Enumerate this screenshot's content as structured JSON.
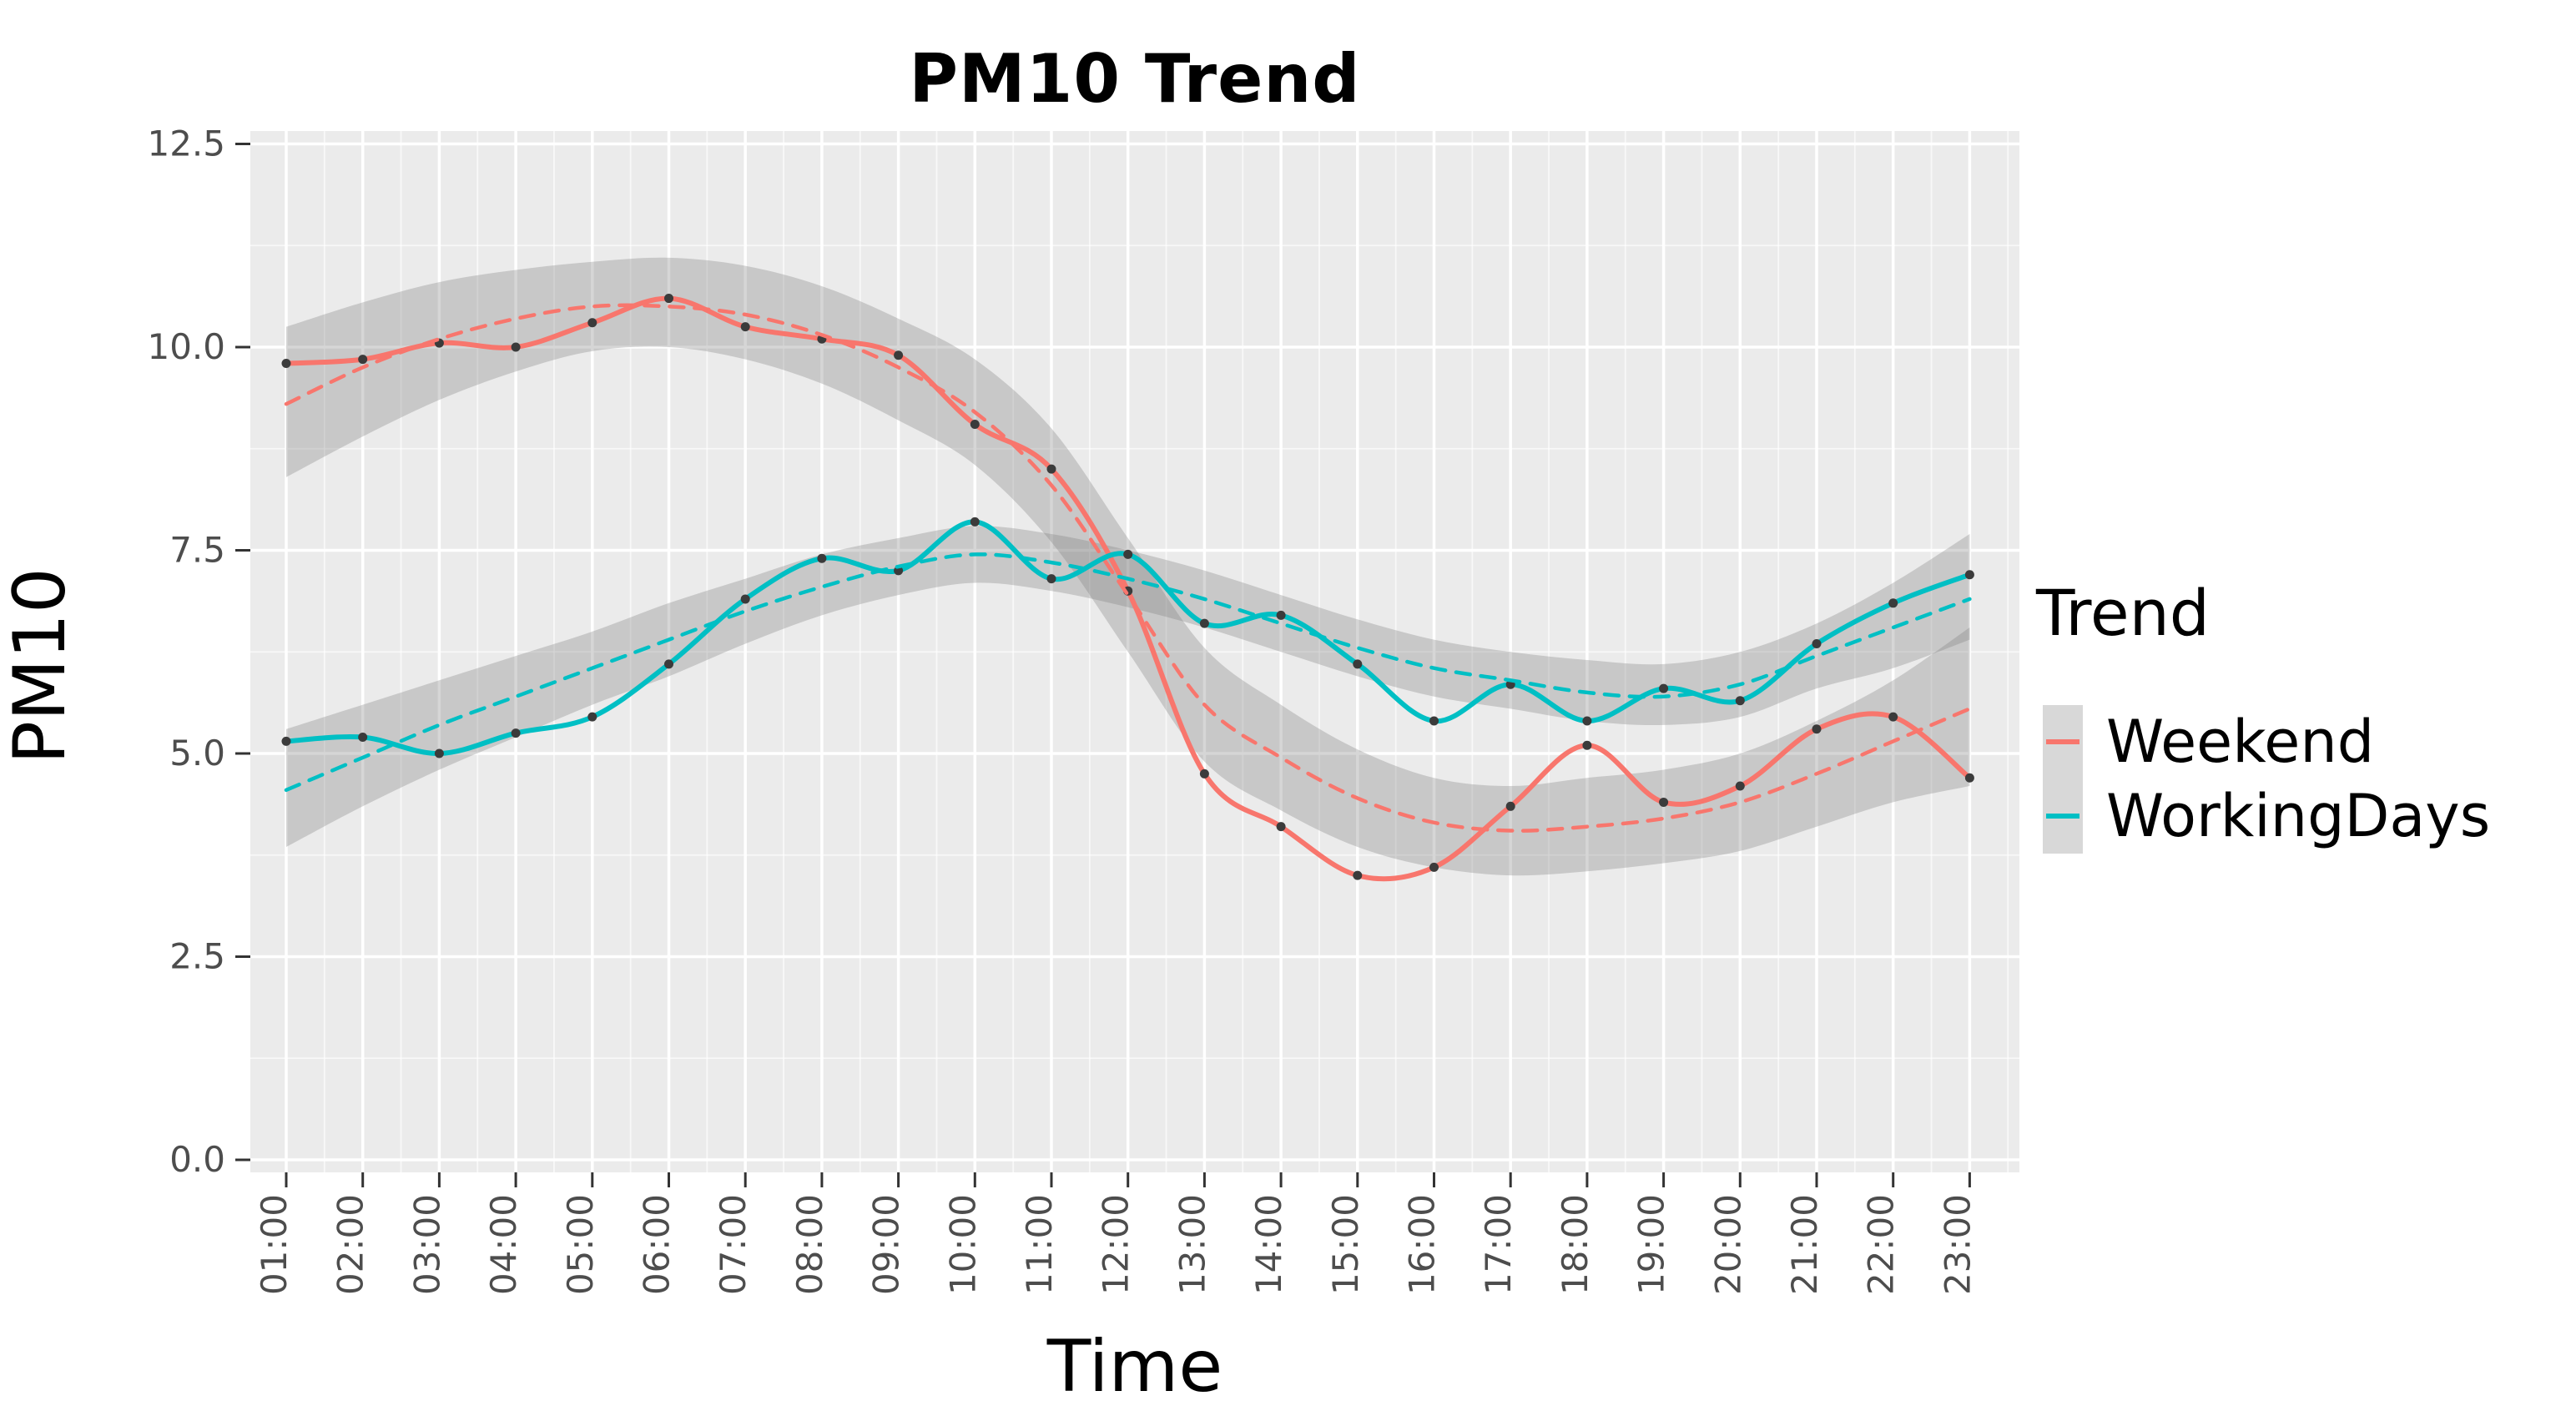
{
  "title": "PM10 Trend",
  "x_axis": {
    "label": "Time"
  },
  "y_axis": {
    "label": "PM10",
    "tick_labels": [
      "0.0",
      "2.5",
      "5.0",
      "7.5",
      "10.0",
      "12.5"
    ],
    "tick_values": [
      0,
      2.5,
      5,
      7.5,
      10,
      12.5
    ]
  },
  "legend": {
    "title": "Trend",
    "entries": [
      {
        "label": "Weekend",
        "color": "#F8766D"
      },
      {
        "label": "WorkingDays",
        "color": "#00BFC4"
      }
    ]
  },
  "colors": {
    "weekend": "#F8766D",
    "workingdays": "#00BFC4",
    "panel_background": "#EBEBEB",
    "grid_major": "#FFFFFF",
    "grid_minor": "rgba(255,255,255,0.65)",
    "ribbon": "rgba(127,127,127,0.32)",
    "point": "#3b3b3b",
    "axis_text": "#4D4D4D",
    "tick_mark": "#333333",
    "legend_key_bg": "#d8d8d8"
  },
  "chart_data": {
    "type": "line",
    "title": "PM10 Trend",
    "xlabel": "Time",
    "ylabel": "PM10",
    "ylim": [
      0,
      12.5
    ],
    "grid": true,
    "legend_position": "right",
    "legend_title": "Trend",
    "categories": [
      "01:00",
      "02:00",
      "03:00",
      "04:00",
      "05:00",
      "06:00",
      "07:00",
      "08:00",
      "09:00",
      "10:00",
      "11:00",
      "12:00",
      "13:00",
      "14:00",
      "15:00",
      "16:00",
      "17:00",
      "18:00",
      "19:00",
      "20:00",
      "21:00",
      "22:00",
      "23:00"
    ],
    "series": [
      {
        "name": "Weekend observed",
        "style": "solid",
        "points": true,
        "color": "#F8766D",
        "values": [
          9.8,
          9.85,
          10.05,
          10.0,
          10.3,
          10.6,
          10.25,
          10.1,
          9.9,
          9.05,
          8.5,
          7.0,
          4.75,
          4.1,
          3.5,
          3.6,
          4.35,
          5.1,
          4.4,
          4.6,
          5.3,
          5.45,
          4.7
        ]
      },
      {
        "name": "Weekend trend",
        "style": "dashed",
        "points": false,
        "color": "#F8766D",
        "values": [
          9.3,
          9.75,
          10.1,
          10.35,
          10.5,
          10.5,
          10.4,
          10.15,
          9.75,
          9.2,
          8.3,
          6.95,
          5.6,
          4.95,
          4.45,
          4.15,
          4.05,
          4.1,
          4.2,
          4.4,
          4.75,
          5.15,
          5.55
        ]
      },
      {
        "name": "WorkingDays observed",
        "style": "solid",
        "points": true,
        "color": "#00BFC4",
        "values": [
          5.15,
          5.2,
          5.0,
          5.25,
          5.45,
          6.1,
          6.9,
          7.4,
          7.25,
          7.85,
          7.15,
          7.45,
          6.6,
          6.7,
          6.1,
          5.4,
          5.85,
          5.4,
          5.8,
          5.65,
          6.35,
          6.85,
          7.2
        ]
      },
      {
        "name": "WorkingDays trend",
        "style": "dashed",
        "points": false,
        "color": "#00BFC4",
        "values": [
          4.55,
          4.95,
          5.35,
          5.7,
          6.05,
          6.4,
          6.75,
          7.05,
          7.3,
          7.45,
          7.35,
          7.15,
          6.9,
          6.6,
          6.3,
          6.05,
          5.9,
          5.75,
          5.7,
          5.85,
          6.2,
          6.55,
          6.9
        ]
      }
    ],
    "bands": [
      {
        "name": "Weekend confidence band",
        "upper": [
          10.25,
          10.55,
          10.8,
          10.95,
          11.05,
          11.1,
          11.0,
          10.75,
          10.35,
          9.85,
          9.0,
          7.65,
          6.3,
          5.6,
          5.05,
          4.7,
          4.6,
          4.7,
          4.8,
          5.0,
          5.4,
          5.9,
          6.55
        ],
        "lower": [
          8.4,
          8.9,
          9.35,
          9.7,
          9.95,
          10.0,
          9.85,
          9.55,
          9.1,
          8.55,
          7.6,
          6.25,
          4.9,
          4.3,
          3.85,
          3.6,
          3.5,
          3.55,
          3.65,
          3.8,
          4.1,
          4.4,
          4.6
        ]
      },
      {
        "name": "WorkingDays confidence band",
        "upper": [
          5.3,
          5.6,
          5.9,
          6.2,
          6.5,
          6.85,
          7.15,
          7.45,
          7.65,
          7.8,
          7.7,
          7.5,
          7.25,
          6.95,
          6.65,
          6.4,
          6.25,
          6.15,
          6.1,
          6.25,
          6.6,
          7.1,
          7.7
        ],
        "lower": [
          3.85,
          4.35,
          4.8,
          5.2,
          5.6,
          5.95,
          6.35,
          6.7,
          6.95,
          7.1,
          7.0,
          6.8,
          6.55,
          6.25,
          5.95,
          5.7,
          5.55,
          5.4,
          5.35,
          5.45,
          5.8,
          6.05,
          6.4
        ]
      }
    ]
  }
}
